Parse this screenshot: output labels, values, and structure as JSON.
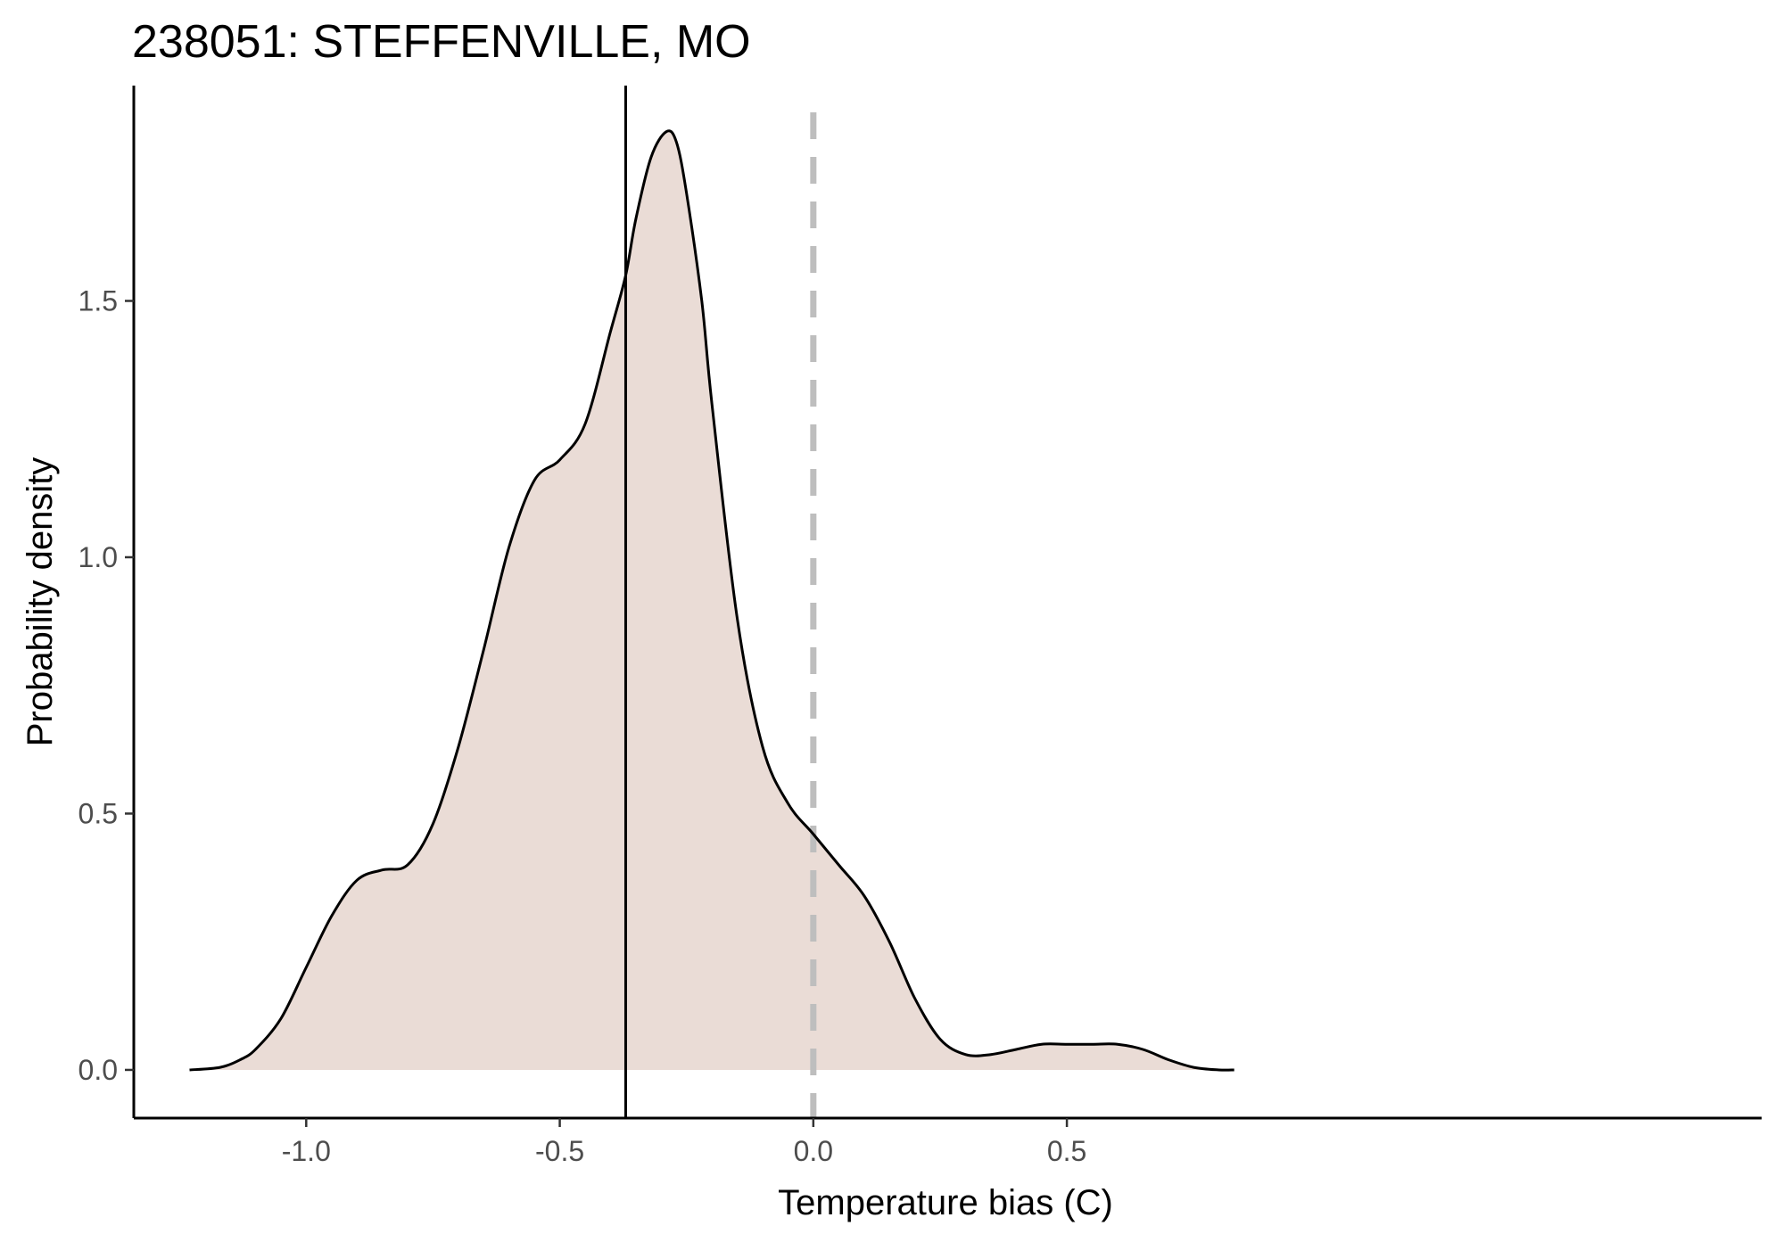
{
  "chart_data": {
    "type": "area",
    "title": "238051: STEFFENVILLE, MO",
    "xlabel": "Temperature bias (C)",
    "ylabel": "Probability density",
    "xlim": [
      -1.34,
      1.87
    ],
    "ylim": [
      -0.094,
      1.92
    ],
    "x_ticks": [
      -1.0,
      -0.5,
      0.0,
      0.5
    ],
    "x_tick_labels": [
      "-1.0",
      "-0.5",
      "0.0",
      "0.5"
    ],
    "y_ticks": [
      0.0,
      0.5,
      1.0,
      1.5
    ],
    "y_tick_labels": [
      "0.0",
      "0.5",
      "1.0",
      "1.5"
    ],
    "grid": false,
    "legend": "none",
    "fill_color": "#eadcd6",
    "line_color": "#000000",
    "reference_lines": [
      {
        "x": -0.37,
        "style": "solid",
        "color": "#000000"
      },
      {
        "x": 0.0,
        "style": "dashed",
        "color": "#bebebe"
      }
    ],
    "series": [
      {
        "x": [
          -1.23,
          -1.17,
          -1.13,
          -1.1,
          -1.05,
          -1.0,
          -0.95,
          -0.9,
          -0.85,
          -0.8,
          -0.75,
          -0.7,
          -0.65,
          -0.6,
          -0.55,
          -0.5,
          -0.45,
          -0.4,
          -0.37,
          -0.35,
          -0.32,
          -0.29,
          -0.27,
          -0.25,
          -0.22,
          -0.2,
          -0.15,
          -0.1,
          -0.05,
          0.0,
          0.05,
          0.1,
          0.15,
          0.2,
          0.25,
          0.3,
          0.35,
          0.4,
          0.45,
          0.5,
          0.55,
          0.6,
          0.65,
          0.7,
          0.75,
          0.8,
          0.83
        ],
        "values": [
          0.0,
          0.005,
          0.02,
          0.04,
          0.1,
          0.2,
          0.3,
          0.37,
          0.39,
          0.4,
          0.48,
          0.63,
          0.82,
          1.02,
          1.15,
          1.19,
          1.26,
          1.44,
          1.55,
          1.66,
          1.78,
          1.83,
          1.81,
          1.71,
          1.5,
          1.3,
          0.88,
          0.63,
          0.52,
          0.46,
          0.4,
          0.34,
          0.25,
          0.14,
          0.06,
          0.03,
          0.03,
          0.04,
          0.05,
          0.05,
          0.05,
          0.05,
          0.04,
          0.02,
          0.005,
          0.0,
          0.0
        ]
      }
    ]
  }
}
